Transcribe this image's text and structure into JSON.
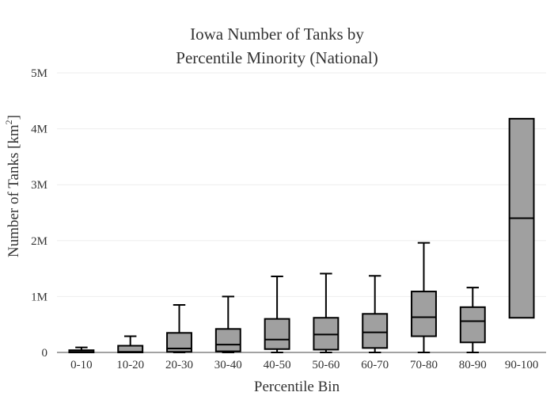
{
  "chart_data": {
    "type": "box",
    "title_lines": [
      "Iowa Number of Tanks by",
      "Percentile Minority (National)"
    ],
    "xlabel": "Percentile Bin",
    "ylabel_main": "Number of Tanks  [km",
    "ylabel_sup": "2",
    "ylabel_end": "]",
    "categories": [
      "0-10",
      "10-20",
      "20-30",
      "30-40",
      "40-50",
      "50-60",
      "60-70",
      "70-80",
      "80-90",
      "90-100"
    ],
    "y_ticks": [
      {
        "value": 0,
        "label": "0"
      },
      {
        "value": 1000000,
        "label": "1M"
      },
      {
        "value": 2000000,
        "label": "2M"
      },
      {
        "value": 3000000,
        "label": "3M"
      },
      {
        "value": 4000000,
        "label": "4M"
      },
      {
        "value": 5000000,
        "label": "5M"
      }
    ],
    "ylim": [
      0,
      5000000
    ],
    "grid": true,
    "box_color": "#a0a0a0",
    "line_color": "#000000",
    "boxes": [
      {
        "category": "0-10",
        "min": 0,
        "q1": 0,
        "median": 10000,
        "q3": 40000,
        "max": 90000
      },
      {
        "category": "10-20",
        "min": 0,
        "q1": 0,
        "median": 10000,
        "q3": 120000,
        "max": 290000
      },
      {
        "category": "20-30",
        "min": 0,
        "q1": 10000,
        "median": 70000,
        "q3": 350000,
        "max": 850000
      },
      {
        "category": "30-40",
        "min": 0,
        "q1": 20000,
        "median": 140000,
        "q3": 420000,
        "max": 1000000
      },
      {
        "category": "40-50",
        "min": 0,
        "q1": 60000,
        "median": 230000,
        "q3": 600000,
        "max": 1360000
      },
      {
        "category": "50-60",
        "min": 0,
        "q1": 50000,
        "median": 320000,
        "q3": 620000,
        "max": 1410000
      },
      {
        "category": "60-70",
        "min": 0,
        "q1": 80000,
        "median": 360000,
        "q3": 690000,
        "max": 1370000
      },
      {
        "category": "70-80",
        "min": 0,
        "q1": 290000,
        "median": 630000,
        "q3": 1090000,
        "max": 1960000
      },
      {
        "category": "80-90",
        "min": 0,
        "q1": 180000,
        "median": 560000,
        "q3": 810000,
        "max": 1160000
      },
      {
        "category": "90-100",
        "min": 620000,
        "q1": 620000,
        "median": 2400000,
        "q3": 4180000,
        "max": 4180000
      }
    ]
  }
}
